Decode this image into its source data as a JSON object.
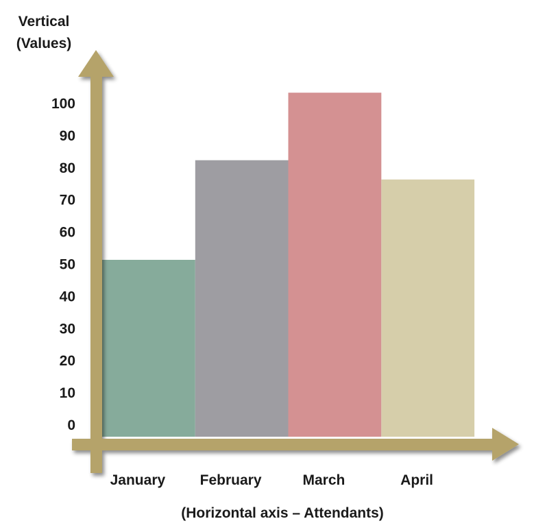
{
  "chart_data": {
    "type": "bar",
    "ylabel": "Vertical\n(Values)",
    "xlabel": "(Horizontal axis – Attendants)",
    "categories": [
      "January",
      "February",
      "March",
      "April"
    ],
    "values": [
      55,
      86,
      107,
      80
    ],
    "bar_colors": [
      "#86ab9b",
      "#9e9da2",
      "#d49192",
      "#d6ceaa"
    ],
    "y_ticks": [
      "0",
      "10",
      "20",
      "30",
      "40",
      "50",
      "60",
      "70",
      "80",
      "90",
      "100"
    ],
    "ylim": [
      0,
      110
    ],
    "grid": false,
    "legend": "none",
    "axis_color": "#b5a36a"
  }
}
